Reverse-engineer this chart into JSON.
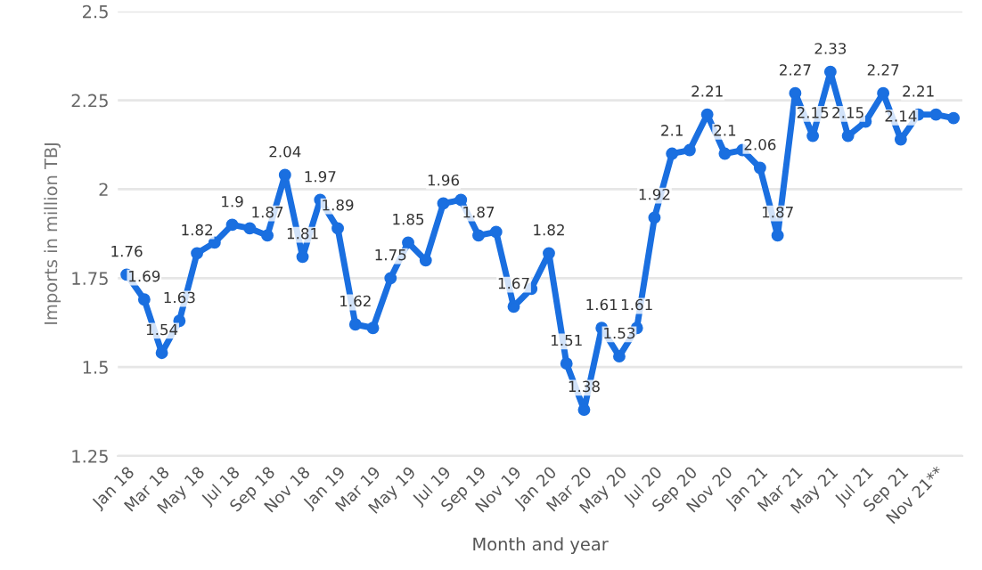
{
  "chart_data": {
    "type": "line",
    "xlabel": "Month and year",
    "ylabel": "Imports in million TBJ",
    "categories": [
      "Jan 18",
      null,
      "Mar 18",
      null,
      "May 18",
      null,
      "Jul 18",
      null,
      "Sep 18",
      null,
      "Nov 18",
      null,
      "Jan 19",
      null,
      "Mar 19",
      null,
      "May 19",
      null,
      "Jul 19",
      null,
      "Sep 19",
      null,
      "Nov 19",
      null,
      "Jan 20",
      null,
      "Mar 20",
      null,
      "May 20",
      null,
      "Jul 20",
      null,
      "Sep 20",
      null,
      "Nov 20",
      null,
      "Jan 21",
      null,
      "Mar 21",
      null,
      "May 21",
      null,
      "Jul 21",
      null,
      "Sep 21",
      null,
      "Nov 21**",
      null
    ],
    "series": [
      {
        "color": "#1a6fe0",
        "values": [
          1.76,
          1.69,
          1.54,
          1.63,
          1.82,
          1.85,
          1.9,
          1.89,
          1.87,
          2.04,
          1.81,
          1.97,
          1.89,
          1.62,
          1.61,
          1.75,
          1.85,
          1.8,
          1.96,
          1.97,
          1.87,
          1.88,
          1.67,
          1.72,
          1.82,
          1.51,
          1.38,
          1.61,
          1.53,
          1.61,
          1.92,
          2.1,
          2.11,
          2.21,
          2.1,
          2.11,
          2.06,
          1.87,
          2.27,
          2.15,
          2.33,
          2.15,
          2.19,
          2.27,
          2.14,
          2.21,
          2.21,
          2.2
        ],
        "value_labels": [
          "1.76",
          "1.69",
          "1.54",
          "1.63",
          "1.82",
          null,
          "1.9",
          null,
          "1.87",
          "2.04",
          "1.81",
          "1.97",
          "1.89",
          "1.62",
          null,
          "1.75",
          "1.85",
          null,
          "1.96",
          null,
          "1.87",
          null,
          "1.67",
          null,
          "1.82",
          "1.51",
          "1.38",
          "1.61",
          "1.53",
          "1.61",
          "1.92",
          "2.1",
          null,
          "2.21",
          "2.1",
          null,
          "2.06",
          "1.87",
          "2.27",
          "2.15",
          "2.33",
          "2.15",
          null,
          "2.27",
          "2.14",
          "2.21",
          null,
          null
        ]
      }
    ],
    "ylim": [
      1.25,
      2.5
    ],
    "yticks": [
      1.25,
      1.5,
      1.75,
      2,
      2.25,
      2.5
    ],
    "grid": "y",
    "marker": "circle",
    "line_style": "solid"
  }
}
